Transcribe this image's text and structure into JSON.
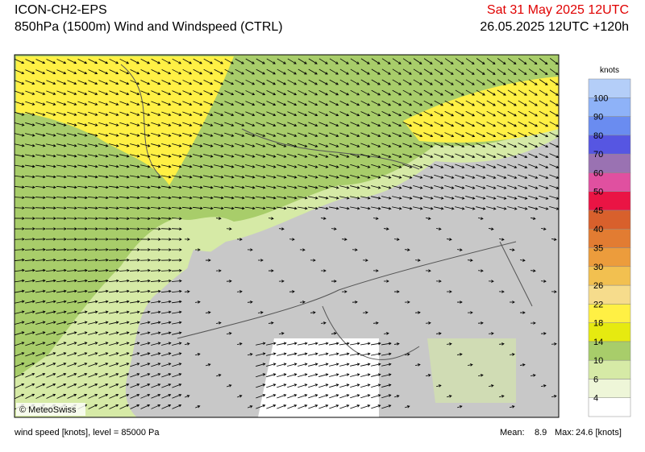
{
  "header": {
    "model": "ICON-CH2-EPS",
    "title": "850hPa (1500m) Wind and Windspeed (CTRL)",
    "valid_time": "Sat 31 May 2025 12UTC",
    "init_time": "26.05.2025 12UTC +120h"
  },
  "colorbar": {
    "unit": "knots",
    "labels": [
      "4",
      "6",
      "10",
      "14",
      "18",
      "22",
      "26",
      "30",
      "35",
      "40",
      "45",
      "50",
      "60",
      "70",
      "80",
      "90",
      "100"
    ],
    "colors": [
      "#ffffff",
      "#eef6d8",
      "#d6eaa6",
      "#a8cd6a",
      "#e6ea10",
      "#fff044",
      "#f6dc8c",
      "#f2c050",
      "#ec9c3c",
      "#e27c32",
      "#d8602c",
      "#ea1444",
      "#e050a0",
      "#9a72b2",
      "#5656e2",
      "#6a8cf0",
      "#8eb2f8",
      "#b4cef8"
    ]
  },
  "copyright": "© MeteoSwiss",
  "footer": {
    "left": "wind speed [knots], level = 85000 Pa",
    "mean_label": "Mean:",
    "mean": "8.9",
    "max_label": "Max:",
    "max": "24.6 [knots]"
  }
}
